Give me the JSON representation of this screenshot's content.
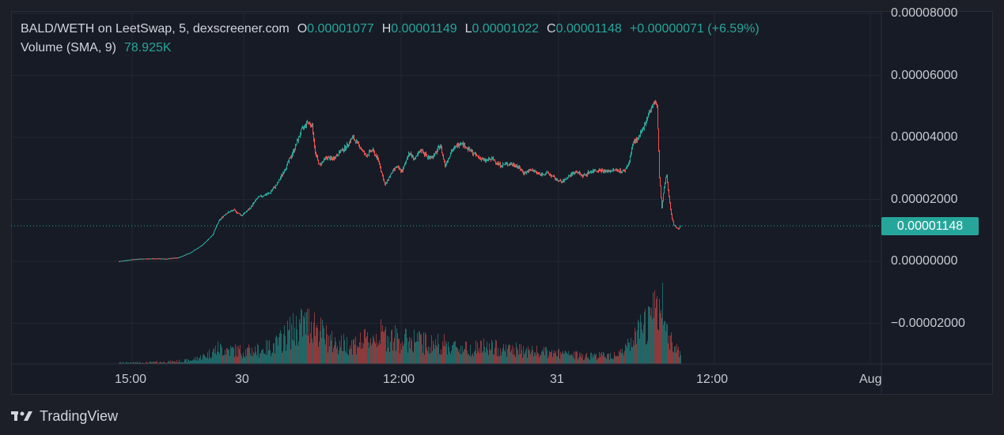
{
  "legend": {
    "symbol": "BALD/WETH on LeetSwap, 5, dexscreener.com",
    "open_label": "O",
    "open": "0.00001077",
    "high_label": "H",
    "high": "0.00001149",
    "low_label": "L",
    "low": "0.00001022",
    "close_label": "C",
    "close": "0.00001148",
    "change": "+0.00000071 (+6.59%)",
    "volume_label": "Volume (SMA, 9)",
    "volume_value": "78.925K"
  },
  "last_price_tag": "0.00001148",
  "brand": {
    "name": "TradingView",
    "logo": "tradingview-logo"
  },
  "colors": {
    "up": "#26a69a",
    "down": "#ef5350",
    "background": "#171b26",
    "grid": "#232733",
    "text": "#c7cad1"
  },
  "chart_data": {
    "type": "candlestick",
    "price_axis": {
      "ticks": [
        "0.00008000",
        "0.00006000",
        "0.00004000",
        "0.00002000",
        "0.00000000",
        "−0.00002000"
      ],
      "tick_values": [
        8e-05,
        6e-05,
        4e-05,
        2e-05,
        0.0,
        -2e-05
      ]
    },
    "time_axis": {
      "ticks": [
        "15:00",
        "30",
        "12:00",
        "31",
        "12:00",
        "Aug"
      ]
    },
    "last_price": 1.148e-05,
    "price_path": [
      [
        0,
        0.0
      ],
      [
        10,
        4e-07
      ],
      [
        25,
        8e-07
      ],
      [
        45,
        9e-07
      ],
      [
        60,
        8e-07
      ],
      [
        75,
        1.2e-06
      ],
      [
        90,
        2.8e-06
      ],
      [
        105,
        5.2e-06
      ],
      [
        118,
        8.5e-06
      ],
      [
        126,
        1.3e-05
      ],
      [
        135,
        1.55e-05
      ],
      [
        145,
        1.65e-05
      ],
      [
        155,
        1.48e-05
      ],
      [
        165,
        1.7e-05
      ],
      [
        175,
        2.05e-05
      ],
      [
        190,
        2.2e-05
      ],
      [
        200,
        2.5e-05
      ],
      [
        212,
        3.1e-05
      ],
      [
        222,
        3.65e-05
      ],
      [
        230,
        4.2e-05
      ],
      [
        238,
        4.5e-05
      ],
      [
        244,
        4.38e-05
      ],
      [
        248,
        3.5e-05
      ],
      [
        253,
        3.1e-05
      ],
      [
        262,
        3.35e-05
      ],
      [
        270,
        3.3e-05
      ],
      [
        280,
        3.55e-05
      ],
      [
        287,
        3.7e-05
      ],
      [
        295,
        4e-05
      ],
      [
        303,
        3.75e-05
      ],
      [
        312,
        3.4e-05
      ],
      [
        320,
        3.6e-05
      ],
      [
        328,
        3.25e-05
      ],
      [
        336,
        2.45e-05
      ],
      [
        342,
        2.75e-05
      ],
      [
        350,
        3.05e-05
      ],
      [
        358,
        2.9e-05
      ],
      [
        366,
        3.5e-05
      ],
      [
        374,
        3.3e-05
      ],
      [
        382,
        3.6e-05
      ],
      [
        390,
        3.35e-05
      ],
      [
        398,
        3.4e-05
      ],
      [
        406,
        3.75e-05
      ],
      [
        412,
        3.1e-05
      ],
      [
        420,
        3.55e-05
      ],
      [
        432,
        3.85e-05
      ],
      [
        442,
        3.6e-05
      ],
      [
        452,
        3.4e-05
      ],
      [
        462,
        3.25e-05
      ],
      [
        472,
        3.3e-05
      ],
      [
        482,
        3.1e-05
      ],
      [
        492,
        3.15e-05
      ],
      [
        502,
        3.1e-05
      ],
      [
        512,
        2.85e-05
      ],
      [
        522,
        2.95e-05
      ],
      [
        532,
        2.8e-05
      ],
      [
        542,
        2.85e-05
      ],
      [
        552,
        2.65e-05
      ],
      [
        560,
        2.55e-05
      ],
      [
        568,
        2.75e-05
      ],
      [
        578,
        2.9e-05
      ],
      [
        586,
        2.75e-05
      ],
      [
        596,
        2.9e-05
      ],
      [
        606,
        2.95e-05
      ],
      [
        616,
        2.9e-05
      ],
      [
        628,
        2.95e-05
      ],
      [
        638,
        2.9e-05
      ],
      [
        644,
        3.15e-05
      ],
      [
        650,
        3.85e-05
      ],
      [
        656,
        3.95e-05
      ],
      [
        662,
        4.25e-05
      ],
      [
        668,
        4.7e-05
      ],
      [
        674,
        5e-05
      ],
      [
        678,
        5.15e-05
      ],
      [
        680,
        5e-05
      ],
      [
        683,
        2.75e-05
      ],
      [
        686,
        1.7e-05
      ],
      [
        689,
        2.4e-05
      ],
      [
        692,
        2.8e-05
      ],
      [
        695,
        2.1e-05
      ],
      [
        698,
        1.5e-05
      ],
      [
        701,
        1.18e-05
      ],
      [
        704,
        1.1e-05
      ],
      [
        707,
        1.05e-05
      ],
      [
        710,
        1.15e-05
      ]
    ],
    "volume_path": [
      [
        0,
        0.02
      ],
      [
        30,
        0.02
      ],
      [
        60,
        0.03
      ],
      [
        90,
        0.05
      ],
      [
        110,
        0.12
      ],
      [
        125,
        0.22
      ],
      [
        140,
        0.2
      ],
      [
        160,
        0.18
      ],
      [
        180,
        0.2
      ],
      [
        200,
        0.28
      ],
      [
        215,
        0.45
      ],
      [
        230,
        0.55
      ],
      [
        245,
        0.6
      ],
      [
        255,
        0.45
      ],
      [
        270,
        0.3
      ],
      [
        290,
        0.28
      ],
      [
        310,
        0.32
      ],
      [
        330,
        0.42
      ],
      [
        345,
        0.38
      ],
      [
        360,
        0.33
      ],
      [
        375,
        0.35
      ],
      [
        390,
        0.28
      ],
      [
        405,
        0.3
      ],
      [
        420,
        0.25
      ],
      [
        440,
        0.22
      ],
      [
        460,
        0.24
      ],
      [
        480,
        0.22
      ],
      [
        500,
        0.2
      ],
      [
        520,
        0.18
      ],
      [
        540,
        0.16
      ],
      [
        560,
        0.14
      ],
      [
        580,
        0.12
      ],
      [
        600,
        0.12
      ],
      [
        620,
        0.12
      ],
      [
        640,
        0.2
      ],
      [
        655,
        0.4
      ],
      [
        668,
        0.6
      ],
      [
        678,
        0.75
      ],
      [
        686,
        0.8
      ],
      [
        694,
        0.45
      ],
      [
        702,
        0.25
      ],
      [
        710,
        0.15
      ]
    ],
    "grid": true
  }
}
